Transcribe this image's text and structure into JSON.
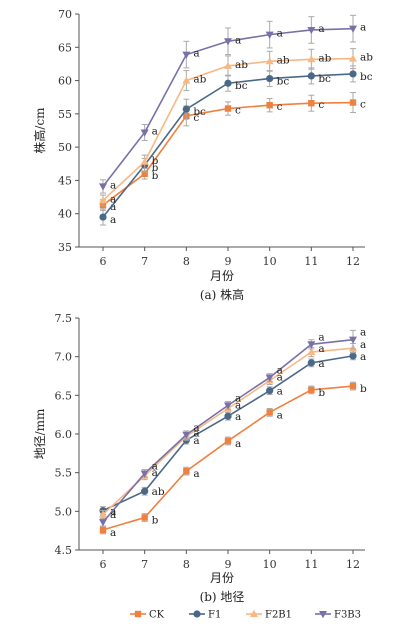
{
  "chart_data": [
    {
      "type": "line",
      "caption": "(a) 株高",
      "xlabel": "月份",
      "ylabel": "株高/cm",
      "x": [
        6,
        7,
        8,
        9,
        10,
        11,
        12
      ],
      "ylim": [
        35,
        70
      ],
      "yticks": [
        35,
        40,
        45,
        50,
        55,
        60,
        65,
        70
      ],
      "series": [
        {
          "name": "CK",
          "values": [
            41.3,
            46.0,
            54.7,
            55.8,
            56.3,
            56.6,
            56.7
          ],
          "errors": [
            0.8,
            0.8,
            1.5,
            1.0,
            1.0,
            1.2,
            1.5
          ],
          "labels": [
            "a",
            "b",
            "c",
            "c",
            "c",
            "c",
            "c"
          ]
        },
        {
          "name": "F1",
          "values": [
            39.5,
            47.3,
            55.7,
            59.6,
            60.3,
            60.7,
            61.0
          ],
          "errors": [
            1.2,
            1.0,
            1.5,
            1.2,
            1.2,
            1.2,
            1.2
          ],
          "labels": [
            "a",
            "b",
            "bc",
            "bc",
            "bc",
            "bc",
            "bc"
          ]
        },
        {
          "name": "F2B1",
          "values": [
            42.0,
            47.8,
            60.0,
            62.2,
            62.9,
            63.2,
            63.3
          ],
          "errors": [
            0.8,
            1.0,
            1.5,
            1.5,
            1.5,
            1.5,
            1.5
          ],
          "labels": [
            "a",
            "b",
            "ab",
            "ab",
            "ab",
            "ab",
            "ab"
          ]
        },
        {
          "name": "F3B3",
          "values": [
            44.1,
            52.2,
            63.9,
            65.9,
            66.9,
            67.6,
            67.8
          ],
          "errors": [
            1.0,
            1.2,
            2.0,
            2.0,
            2.0,
            2.0,
            2.0
          ],
          "labels": [
            "a",
            "a",
            "a",
            "a",
            "a",
            "a",
            "a"
          ]
        }
      ]
    },
    {
      "type": "line",
      "caption": "(b) 地径",
      "xlabel": "月份",
      "ylabel": "地径/mm",
      "x": [
        6,
        7,
        8,
        9,
        10,
        11,
        12
      ],
      "ylim": [
        4.5,
        7.5
      ],
      "yticks": [
        4.5,
        5.0,
        5.5,
        6.0,
        6.5,
        7.0,
        7.5
      ],
      "series": [
        {
          "name": "CK",
          "values": [
            4.76,
            4.92,
            5.52,
            5.91,
            6.28,
            6.57,
            6.62
          ],
          "errors": [
            0.05,
            0.05,
            0.05,
            0.05,
            0.05,
            0.05,
            0.05
          ],
          "labels": [
            "a",
            "b",
            "a",
            "a",
            "a",
            "b",
            "b"
          ]
        },
        {
          "name": "F1",
          "values": [
            5.01,
            5.26,
            5.92,
            6.23,
            6.56,
            6.92,
            7.01
          ],
          "errors": [
            0.05,
            0.05,
            0.05,
            0.05,
            0.05,
            0.05,
            0.05
          ],
          "labels": [
            "a",
            "ab",
            "a",
            "a",
            "a",
            "a",
            "a"
          ]
        },
        {
          "name": "F2B1",
          "values": [
            4.96,
            5.46,
            5.97,
            6.33,
            6.69,
            7.06,
            7.11
          ],
          "errors": [
            0.05,
            0.05,
            0.05,
            0.05,
            0.05,
            0.06,
            0.06
          ],
          "labels": [
            "a",
            "a",
            "a",
            "a",
            "a",
            "a",
            "a"
          ]
        },
        {
          "name": "F3B3",
          "values": [
            4.86,
            5.49,
            5.99,
            6.37,
            6.73,
            7.16,
            7.22
          ],
          "errors": [
            0.05,
            0.05,
            0.05,
            0.05,
            0.05,
            0.06,
            0.12
          ],
          "labels": [
            "a",
            "a",
            "a",
            "a",
            "a",
            "a",
            "a"
          ]
        }
      ]
    }
  ],
  "legend": {
    "placement": "bottom",
    "items": [
      {
        "name": "CK",
        "color": "#f08040",
        "marker": "square"
      },
      {
        "name": "F1",
        "color": "#4a6888",
        "marker": "circle"
      },
      {
        "name": "F2B1",
        "color": "#f7b884",
        "marker": "triangle-up"
      },
      {
        "name": "F3B3",
        "color": "#7a70a8",
        "marker": "triangle-down"
      }
    ]
  }
}
